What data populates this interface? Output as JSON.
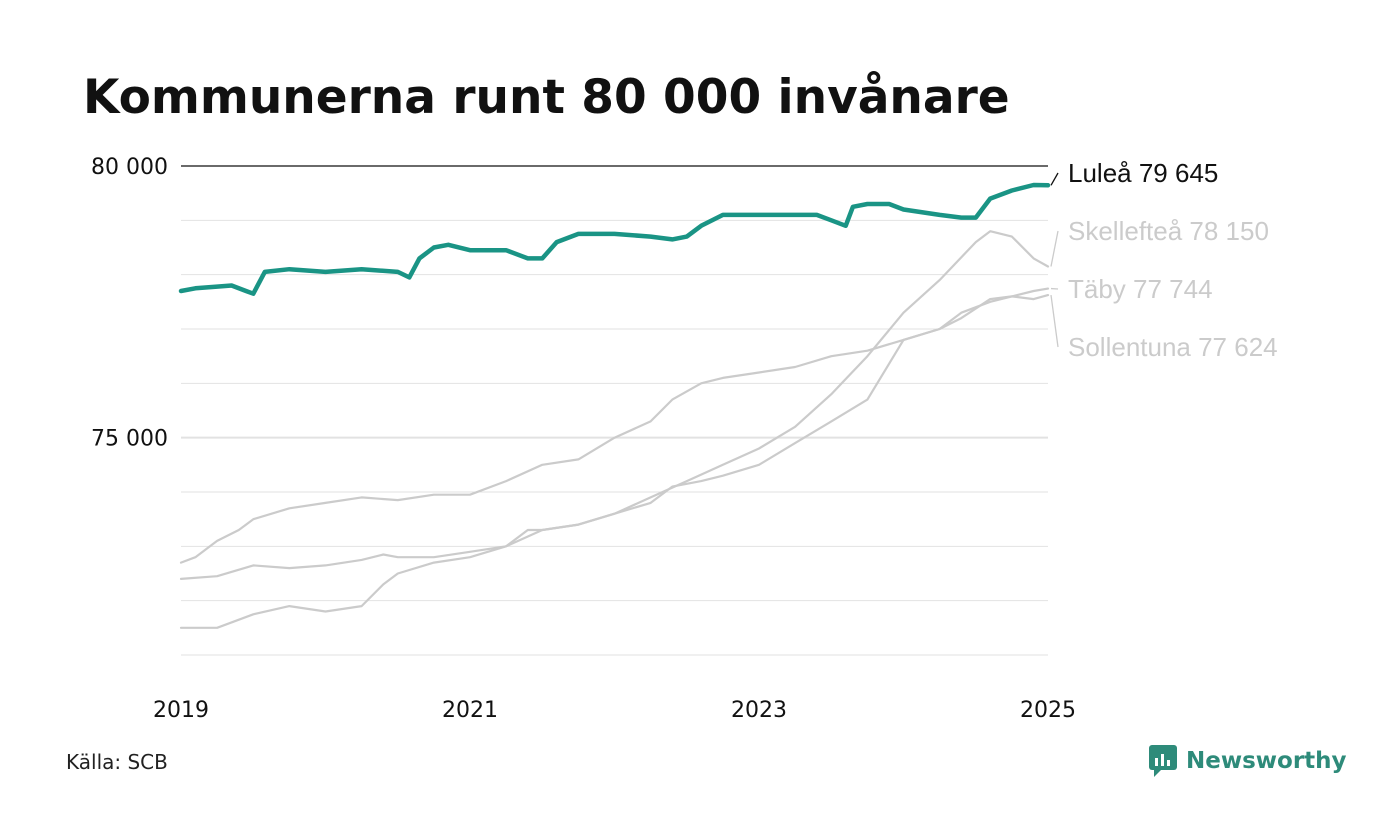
{
  "title": "Kommunerna runt 80 000 invånare",
  "source": "Källa: SCB",
  "brand": {
    "name": "Newsworthy",
    "icon": "newsworthy-logo-icon"
  },
  "colors": {
    "highlight": "#1a9485",
    "muted": "#cbcbcb",
    "grid": "#e2e2e2",
    "axis": "#111111"
  },
  "chart_data": {
    "type": "line",
    "xlabel": "",
    "ylabel": "",
    "xlim": [
      2019,
      2025
    ],
    "ylim": [
      71000,
      80000
    ],
    "x_ticks": [
      2019,
      2021,
      2023,
      2025
    ],
    "x_tick_labels": [
      "2019",
      "2021",
      "2023",
      "2025"
    ],
    "y_ticks": [
      75000,
      80000
    ],
    "y_tick_labels": [
      "75 000",
      "80 000"
    ],
    "grid": true,
    "series": [
      {
        "name": "Skellefteå",
        "label": "Skellefteå 78 150",
        "highlight": false,
        "points": [
          [
            2019.0,
            71.5
          ],
          [
            2019.25,
            71.5
          ],
          [
            2019.5,
            71.75
          ],
          [
            2019.75,
            71.9
          ],
          [
            2020.0,
            71.8
          ],
          [
            2020.25,
            71.9
          ],
          [
            2020.4,
            72.3
          ],
          [
            2020.5,
            72.5
          ],
          [
            2020.75,
            72.7
          ],
          [
            2021.0,
            72.8
          ],
          [
            2021.25,
            73.0
          ],
          [
            2021.5,
            73.3
          ],
          [
            2021.75,
            73.4
          ],
          [
            2022.0,
            73.6
          ],
          [
            2022.25,
            73.9
          ],
          [
            2022.5,
            74.2
          ],
          [
            2022.75,
            74.5
          ],
          [
            2023.0,
            74.8
          ],
          [
            2023.25,
            75.2
          ],
          [
            2023.5,
            75.8
          ],
          [
            2023.75,
            76.5
          ],
          [
            2024.0,
            77.3
          ],
          [
            2024.25,
            77.9
          ],
          [
            2024.5,
            78.6
          ],
          [
            2024.6,
            78.8
          ],
          [
            2024.75,
            78.7
          ],
          [
            2024.9,
            78.3
          ],
          [
            2025.0,
            78.15
          ]
        ]
      },
      {
        "name": "Täby",
        "label": "Täby 77 744",
        "highlight": false,
        "points": [
          [
            2019.0,
            72.7
          ],
          [
            2019.1,
            72.8
          ],
          [
            2019.25,
            73.1
          ],
          [
            2019.4,
            73.3
          ],
          [
            2019.5,
            73.5
          ],
          [
            2019.75,
            73.7
          ],
          [
            2020.0,
            73.8
          ],
          [
            2020.25,
            73.9
          ],
          [
            2020.5,
            73.85
          ],
          [
            2020.75,
            73.95
          ],
          [
            2021.0,
            73.95
          ],
          [
            2021.25,
            74.2
          ],
          [
            2021.5,
            74.5
          ],
          [
            2021.75,
            74.6
          ],
          [
            2022.0,
            75.0
          ],
          [
            2022.25,
            75.3
          ],
          [
            2022.4,
            75.7
          ],
          [
            2022.6,
            76.0
          ],
          [
            2022.75,
            76.1
          ],
          [
            2023.0,
            76.2
          ],
          [
            2023.25,
            76.3
          ],
          [
            2023.5,
            76.5
          ],
          [
            2023.75,
            76.6
          ],
          [
            2024.0,
            76.8
          ],
          [
            2024.25,
            77.0
          ],
          [
            2024.4,
            77.2
          ],
          [
            2024.6,
            77.55
          ],
          [
            2024.75,
            77.6
          ],
          [
            2024.9,
            77.7
          ],
          [
            2025.0,
            77.744
          ]
        ]
      },
      {
        "name": "Sollentuna",
        "label": "Sollentuna 77 624",
        "highlight": false,
        "points": [
          [
            2019.0,
            72.4
          ],
          [
            2019.25,
            72.45
          ],
          [
            2019.5,
            72.65
          ],
          [
            2019.75,
            72.6
          ],
          [
            2020.0,
            72.65
          ],
          [
            2020.25,
            72.75
          ],
          [
            2020.4,
            72.85
          ],
          [
            2020.5,
            72.8
          ],
          [
            2020.75,
            72.8
          ],
          [
            2021.0,
            72.9
          ],
          [
            2021.25,
            73.0
          ],
          [
            2021.4,
            73.3
          ],
          [
            2021.5,
            73.3
          ],
          [
            2021.75,
            73.4
          ],
          [
            2022.0,
            73.6
          ],
          [
            2022.25,
            73.8
          ],
          [
            2022.4,
            74.1
          ],
          [
            2022.6,
            74.2
          ],
          [
            2022.75,
            74.3
          ],
          [
            2023.0,
            74.5
          ],
          [
            2023.25,
            74.9
          ],
          [
            2023.5,
            75.3
          ],
          [
            2023.75,
            75.7
          ],
          [
            2024.0,
            76.8
          ],
          [
            2024.25,
            77.0
          ],
          [
            2024.4,
            77.3
          ],
          [
            2024.6,
            77.5
          ],
          [
            2024.75,
            77.6
          ],
          [
            2024.9,
            77.55
          ],
          [
            2025.0,
            77.624
          ]
        ]
      },
      {
        "name": "Luleå",
        "label": "Luleå 79 645",
        "highlight": true,
        "points": [
          [
            2019.0,
            77.7
          ],
          [
            2019.1,
            77.75
          ],
          [
            2019.25,
            77.78
          ],
          [
            2019.35,
            77.8
          ],
          [
            2019.45,
            77.7
          ],
          [
            2019.5,
            77.65
          ],
          [
            2019.58,
            78.05
          ],
          [
            2019.75,
            78.1
          ],
          [
            2020.0,
            78.05
          ],
          [
            2020.25,
            78.1
          ],
          [
            2020.5,
            78.05
          ],
          [
            2020.58,
            77.95
          ],
          [
            2020.65,
            78.3
          ],
          [
            2020.75,
            78.5
          ],
          [
            2020.85,
            78.55
          ],
          [
            2021.0,
            78.45
          ],
          [
            2021.25,
            78.45
          ],
          [
            2021.4,
            78.3
          ],
          [
            2021.5,
            78.3
          ],
          [
            2021.6,
            78.6
          ],
          [
            2021.75,
            78.75
          ],
          [
            2021.9,
            78.75
          ],
          [
            2022.0,
            78.75
          ],
          [
            2022.25,
            78.7
          ],
          [
            2022.4,
            78.65
          ],
          [
            2022.5,
            78.7
          ],
          [
            2022.6,
            78.9
          ],
          [
            2022.75,
            79.1
          ],
          [
            2023.0,
            79.1
          ],
          [
            2023.25,
            79.1
          ],
          [
            2023.4,
            79.1
          ],
          [
            2023.5,
            79.0
          ],
          [
            2023.6,
            78.9
          ],
          [
            2023.65,
            79.25
          ],
          [
            2023.75,
            79.3
          ],
          [
            2023.9,
            79.3
          ],
          [
            2024.0,
            79.2
          ],
          [
            2024.25,
            79.1
          ],
          [
            2024.4,
            79.05
          ],
          [
            2024.5,
            79.05
          ],
          [
            2024.6,
            79.4
          ],
          [
            2024.75,
            79.55
          ],
          [
            2024.9,
            79.65
          ],
          [
            2025.0,
            79.645
          ]
        ]
      }
    ]
  }
}
